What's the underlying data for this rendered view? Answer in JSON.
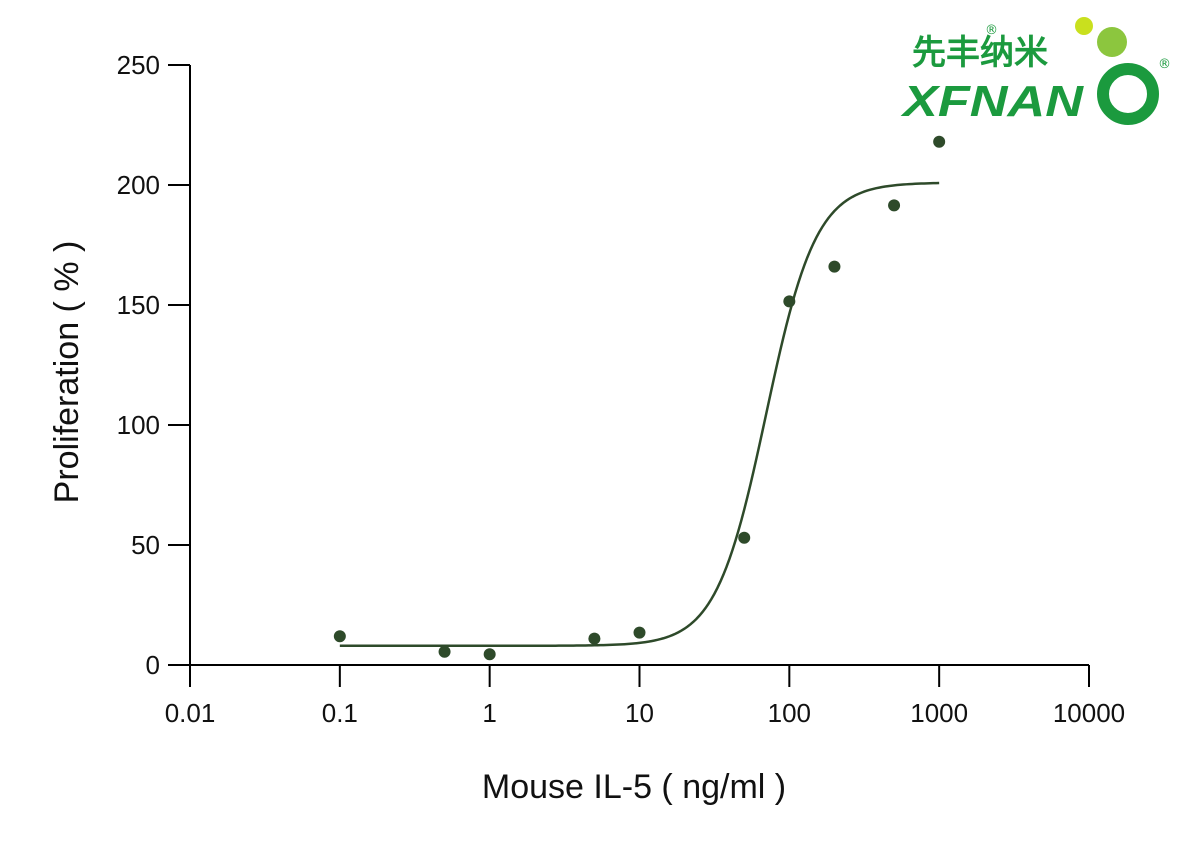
{
  "chart_data": {
    "type": "scatter",
    "xscale": "log",
    "xlim": [
      0.01,
      10000
    ],
    "ylim": [
      0,
      250
    ],
    "xticks": [
      0.01,
      0.1,
      1,
      10,
      100,
      1000,
      10000
    ],
    "xtick_labels": [
      "0.01",
      "0.1",
      "1",
      "10",
      "100",
      "1000",
      "10000"
    ],
    "yticks": [
      0,
      50,
      100,
      150,
      200,
      250
    ],
    "ytick_labels": [
      "0",
      "50",
      "100",
      "150",
      "200",
      "250"
    ],
    "xlabel": "Mouse IL-5 ( ng/ml )",
    "ylabel": "Proliferation  ( % )",
    "grid": false,
    "legend": null,
    "points": [
      {
        "x": 0.1,
        "y": 12
      },
      {
        "x": 0.5,
        "y": 5.5
      },
      {
        "x": 1,
        "y": 4.5
      },
      {
        "x": 5,
        "y": 11
      },
      {
        "x": 10,
        "y": 13.5
      },
      {
        "x": 50,
        "y": 53
      },
      {
        "x": 100,
        "y": 151.5
      },
      {
        "x": 200,
        "y": 166
      },
      {
        "x": 500,
        "y": 191.5
      },
      {
        "x": 1000,
        "y": 218
      }
    ],
    "fit": {
      "model": "4PL",
      "bottom": 8,
      "top": 201,
      "ec50": 70,
      "hill": 2.6,
      "x_range": [
        0.1,
        1000
      ]
    },
    "colors": {
      "series": "#2e4a2a",
      "axis": "#000000"
    }
  },
  "logo": {
    "chinese": "先丰纳米",
    "english_left": "XFNAN",
    "registered": "®",
    "colors": {
      "green": "#1b9a3e",
      "lime": "#a6d21e"
    }
  }
}
